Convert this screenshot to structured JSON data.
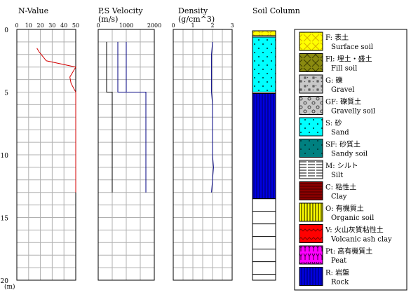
{
  "depth": {
    "unit": "(m)",
    "max": 20,
    "ticks": [
      0,
      5,
      10,
      15,
      20
    ]
  },
  "colors": {
    "grid": "#b0b0b0",
    "nvalue_line": "#d40000",
    "velocity_line": "#000080",
    "density_line": "#000080",
    "frame": "#000000"
  },
  "chart_data": [
    {
      "type": "line",
      "title": "N-Value",
      "xlim": [
        0,
        50
      ],
      "xticks": [
        0,
        10,
        20,
        30,
        40,
        50
      ],
      "y_axis": "depth (m), increasing downward",
      "series": [
        {
          "x": [
            17,
            19,
            25,
            50,
            45,
            46,
            50,
            50,
            50
          ],
          "y": [
            1.5,
            1.8,
            2.5,
            3.0,
            3.8,
            4.3,
            5.0,
            8.0,
            13.0
          ]
        }
      ]
    },
    {
      "type": "line",
      "title": "P,S Velocity",
      "unit": "(m/s)",
      "xlim": [
        0,
        2000
      ],
      "xticks": [
        0,
        1000,
        2000
      ],
      "y_axis": "depth (m), increasing downward",
      "series": [
        {
          "x": [
            700,
            700,
            1700,
            1700
          ],
          "y": [
            1.0,
            5.0,
            5.0,
            13.0
          ]
        },
        {
          "x": [
            300,
            300,
            500,
            500
          ],
          "y": [
            1.0,
            5.0,
            5.0,
            13.0
          ]
        },
        {
          "x": [
            1000,
            1000
          ],
          "y": [
            1.0,
            5.0
          ]
        }
      ]
    },
    {
      "type": "line",
      "title": "Density",
      "unit": "(g/cm^3)",
      "xlim": [
        0,
        3
      ],
      "xticks": [
        0,
        1,
        2,
        3
      ],
      "y_axis": "depth (m), increasing downward",
      "series": [
        {
          "x": [
            2.0,
            1.95,
            1.95,
            2.0,
            2.0,
            2.05,
            2.0,
            1.95
          ],
          "y": [
            1.0,
            2.0,
            5.0,
            6.0,
            10.0,
            11.0,
            12.0,
            13.0
          ]
        }
      ]
    },
    {
      "type": "table",
      "title": "Soil Column",
      "layers": [
        {
          "key": "F",
          "top": 0,
          "bottom": 0.5
        },
        {
          "key": "S",
          "top": 0.5,
          "bottom": 5.0
        },
        {
          "key": "R",
          "top": 5.0,
          "bottom": 13.5
        }
      ],
      "empty_rows_below": 6
    }
  ],
  "legend": [
    {
      "key": "F",
      "code": "F:",
      "label_jp": "表土",
      "label_en": "Surface soil",
      "bg": "#ffff00",
      "fg": "#d8b000",
      "pattern": "cross"
    },
    {
      "key": "Fl",
      "code": "Fl:",
      "label_jp": "埋土・盛土",
      "label_en": "Fill soil",
      "bg": "#8a8a10",
      "fg": "#3f3f00",
      "pattern": "cross"
    },
    {
      "key": "G",
      "code": "G:",
      "label_jp": "礫",
      "label_en": "Gravel",
      "bg": "#c8c8c8",
      "fg": "#404040",
      "pattern": "gravel"
    },
    {
      "key": "GF",
      "code": "GF:",
      "label_jp": "礫質土",
      "label_en": "Gravelly soil",
      "bg": "#c8c8c8",
      "fg": "#404040",
      "pattern": "circles"
    },
    {
      "key": "S",
      "code": "S:",
      "label_jp": "砂",
      "label_en": "Sand",
      "bg": "#00ffff",
      "fg": "#003030",
      "pattern": "dots"
    },
    {
      "key": "SF",
      "code": "SF:",
      "label_jp": "砂質土",
      "label_en": "Sandy soil",
      "bg": "#008080",
      "fg": "#003030",
      "pattern": "dots"
    },
    {
      "key": "M",
      "code": "M:",
      "label_jp": "シルト",
      "label_en": "Silt",
      "bg": "#ffffff",
      "fg": "#000000",
      "pattern": "dashes"
    },
    {
      "key": "C",
      "code": "C:",
      "label_jp": "粘性土",
      "label_en": "Clay",
      "bg": "#8b0000",
      "fg": "#400000",
      "pattern": "hlines"
    },
    {
      "key": "O",
      "code": "O:",
      "label_jp": "有機質土",
      "label_en": "Organic soil",
      "bg": "#ffff00",
      "fg": "#000000",
      "pattern": "vlines"
    },
    {
      "key": "V",
      "code": "V:",
      "label_jp": "火山灰質粘性土",
      "label_en": "Volcanic ash clay",
      "bg": "#ff0000",
      "fg": "#800000",
      "pattern": "zigzag"
    },
    {
      "key": "Pt",
      "code": "Pt:",
      "label_jp": "高有機質土",
      "label_en": "Peat",
      "bg": "#ff00ff",
      "fg": "#400040",
      "pattern": "peat"
    },
    {
      "key": "R",
      "code": "R:",
      "label_jp": "岩盤",
      "label_en": "Rock",
      "bg": "#0000e0",
      "fg": "#000060",
      "pattern": "vlines"
    }
  ]
}
